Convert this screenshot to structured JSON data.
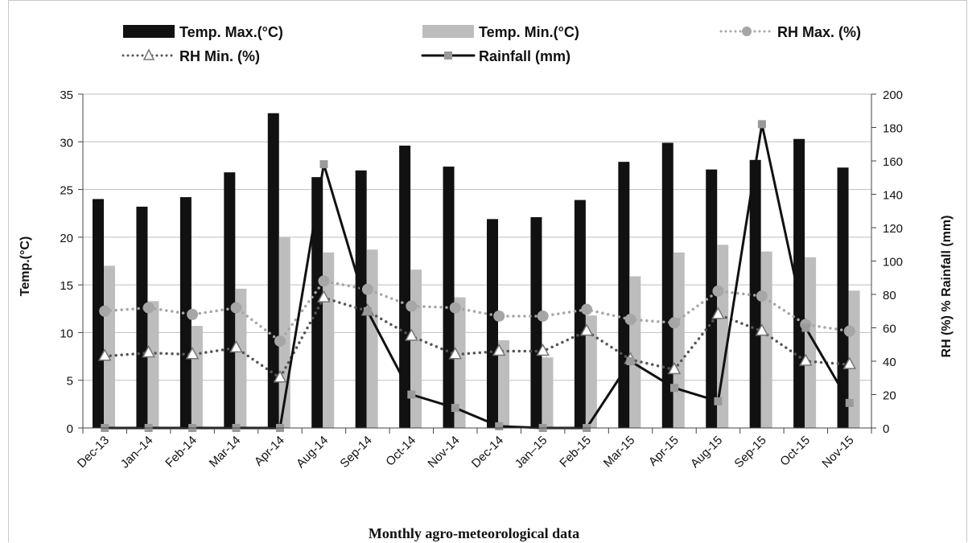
{
  "chart_data": {
    "type": "bar",
    "title": "",
    "caption": "Monthly agro-meteorological data",
    "categories": [
      "Dec-13",
      "Jan–14",
      "Feb-14",
      "Mar-14",
      "Apr-14",
      "Aug-14",
      "Sep-14",
      "Oct-14",
      "Nov-14",
      "Dec-14",
      "Jan–15",
      "Feb-15",
      "Mar-15",
      "Apr-15",
      "Aug-15",
      "Sep-15",
      "Oct-15",
      "Nov-15"
    ],
    "ylabel_left": "Temp.(°C)",
    "ylabel_right": "RH (%) % Rainfall  (mm)",
    "ylim_left": [
      0,
      35
    ],
    "ylim_right": [
      0,
      200
    ],
    "yticks_left": [
      0,
      5,
      10,
      15,
      20,
      25,
      30,
      35
    ],
    "yticks_right": [
      0,
      20,
      40,
      60,
      80,
      100,
      120,
      140,
      160,
      180,
      200
    ],
    "grid": true,
    "legend_position": "top",
    "series": [
      {
        "name": "Temp. Max.(°C)",
        "kind": "bar",
        "axis": "left",
        "color": "#111111",
        "values": [
          24.0,
          23.2,
          24.2,
          26.8,
          33.0,
          26.3,
          27.0,
          29.6,
          27.4,
          21.9,
          22.1,
          23.9,
          27.9,
          29.9,
          27.1,
          28.1,
          30.3,
          27.3
        ]
      },
      {
        "name": "Temp. Min.(°C)",
        "kind": "bar",
        "axis": "left",
        "color": "#bdbdbd",
        "values": [
          17.0,
          13.3,
          10.7,
          14.6,
          20.0,
          18.4,
          18.7,
          16.6,
          13.7,
          9.2,
          7.4,
          11.8,
          15.9,
          18.4,
          19.2,
          18.5,
          17.9,
          14.4
        ]
      },
      {
        "name": "RH Max. (%)",
        "kind": "line",
        "axis": "right",
        "color": "#a6a6a6",
        "marker": "circle",
        "linestyle": "dotted",
        "values": [
          70,
          72,
          68,
          72,
          52,
          88,
          83,
          73,
          72,
          67,
          67,
          71,
          65,
          63,
          82,
          79,
          62,
          58
        ]
      },
      {
        "name": "RH Min. (%)",
        "kind": "line",
        "axis": "right",
        "color": "#555555",
        "marker": "triangle",
        "linestyle": "dotted",
        "values": [
          43,
          45,
          44,
          48,
          30,
          78,
          70,
          55,
          44,
          46,
          46,
          58,
          41,
          35,
          68,
          58,
          40,
          38
        ]
      },
      {
        "name": "Rainfall (mm)",
        "kind": "line",
        "axis": "right",
        "color": "#111111",
        "marker": "square",
        "marker_color": "#9a9a9a",
        "linestyle": "solid",
        "values": [
          0,
          0,
          0,
          0,
          0,
          158,
          70,
          20,
          12,
          1,
          0,
          0,
          40,
          24,
          16,
          182,
          60,
          15
        ]
      }
    ]
  }
}
